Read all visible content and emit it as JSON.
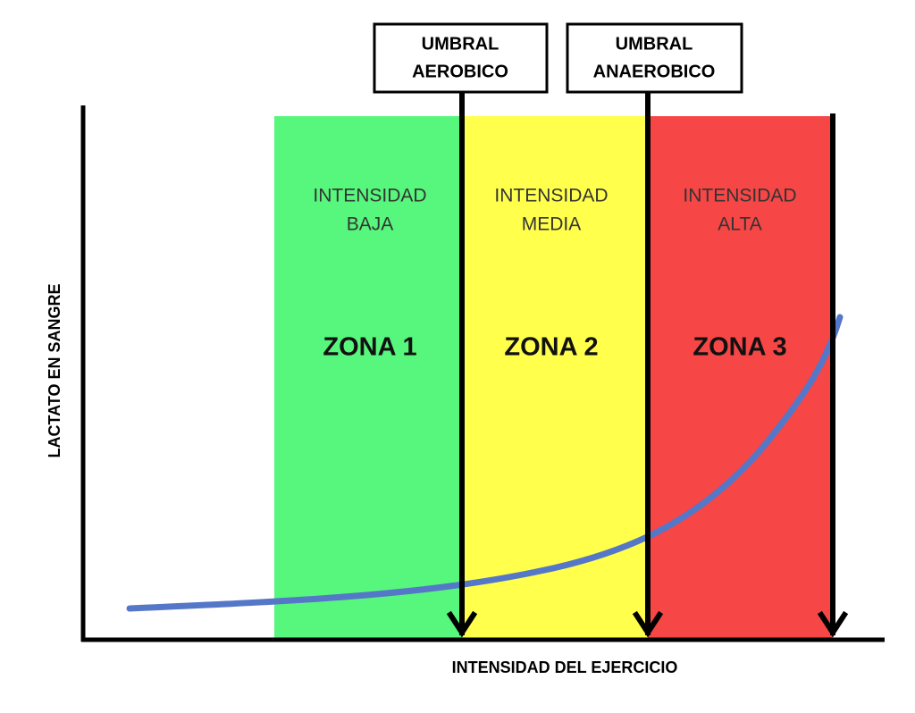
{
  "axes": {
    "y_label": "LACTATO EN SANGRE",
    "x_label": "INTENSIDAD DEL EJERCICIO"
  },
  "thresholds": [
    {
      "label_lines": [
        "UMBRAL",
        "AEROBICO"
      ]
    },
    {
      "label_lines": [
        "UMBRAL",
        "ANAEROBICO"
      ]
    }
  ],
  "zones": [
    {
      "intensity_lines": [
        "INTENSIDAD",
        "BAJA"
      ],
      "name": "ZONA 1"
    },
    {
      "intensity_lines": [
        "INTENSIDAD",
        "MEDIA"
      ],
      "name": "ZONA 2"
    },
    {
      "intensity_lines": [
        "INTENSIDAD",
        "ALTA"
      ],
      "name": "ZONA 3"
    }
  ]
}
